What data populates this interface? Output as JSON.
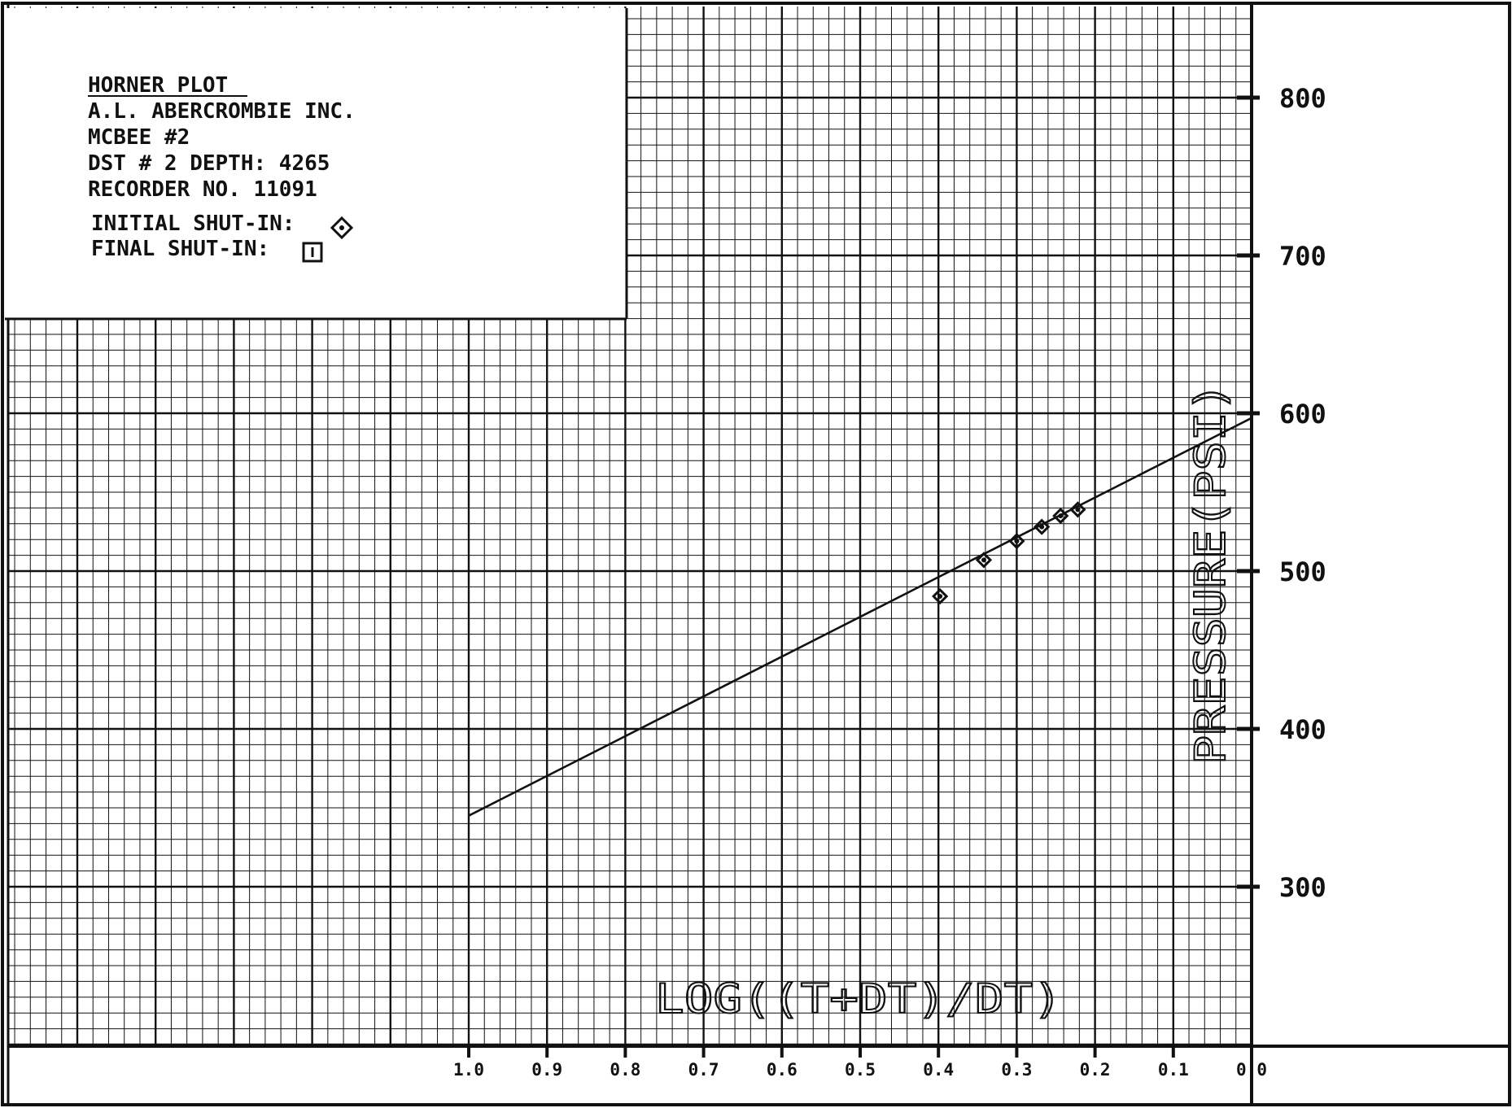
{
  "legend_box": {
    "title": "HORNER PLOT",
    "lines": [
      "A.L. ABERCROMBIE INC.",
      "MCBEE #2",
      "DST # 2   DEPTH: 4265",
      "RECORDER NO. 11091"
    ],
    "initial_label": "INITIAL SHUT-IN:",
    "final_label": "FINAL SHUT-IN:"
  },
  "colors": {
    "ink": "#111111",
    "paper": "#ffffff"
  },
  "chart_data": {
    "type": "scatter",
    "title": "HORNER PLOT",
    "xlabel": "LOG((T+DT)/DT)",
    "ylabel": "PRESSURE(PSI)",
    "x_reversed": true,
    "xlim": [
      0.0,
      1.0
    ],
    "ylim": [
      200,
      860
    ],
    "grid": true,
    "x_ticks": [
      1.0,
      0.9,
      0.8,
      0.7,
      0.6,
      0.5,
      0.4,
      0.3,
      0.2,
      0.1,
      0.0
    ],
    "x_tick_labels": [
      "1.0",
      "0.9",
      "0.8",
      "0.7",
      "0.6",
      "0.5",
      "0.4",
      "0.3",
      "0.2",
      "0.1",
      "0.0"
    ],
    "y_ticks": [
      300,
      400,
      500,
      600,
      700,
      800
    ],
    "y_tick_labels": [
      "300",
      "400",
      "500",
      "600",
      "700",
      "800"
    ],
    "legend_placement": "top-left",
    "series": [
      {
        "name": "INITIAL SHUT-IN",
        "marker": "diamond",
        "x": [
          0.398,
          0.342,
          0.3,
          0.268,
          0.244,
          0.222
        ],
        "y": [
          484,
          507,
          519,
          528,
          535,
          539
        ]
      }
    ],
    "fit_line": {
      "x": [
        1.0,
        0.0
      ],
      "y": [
        345,
        597
      ]
    }
  }
}
